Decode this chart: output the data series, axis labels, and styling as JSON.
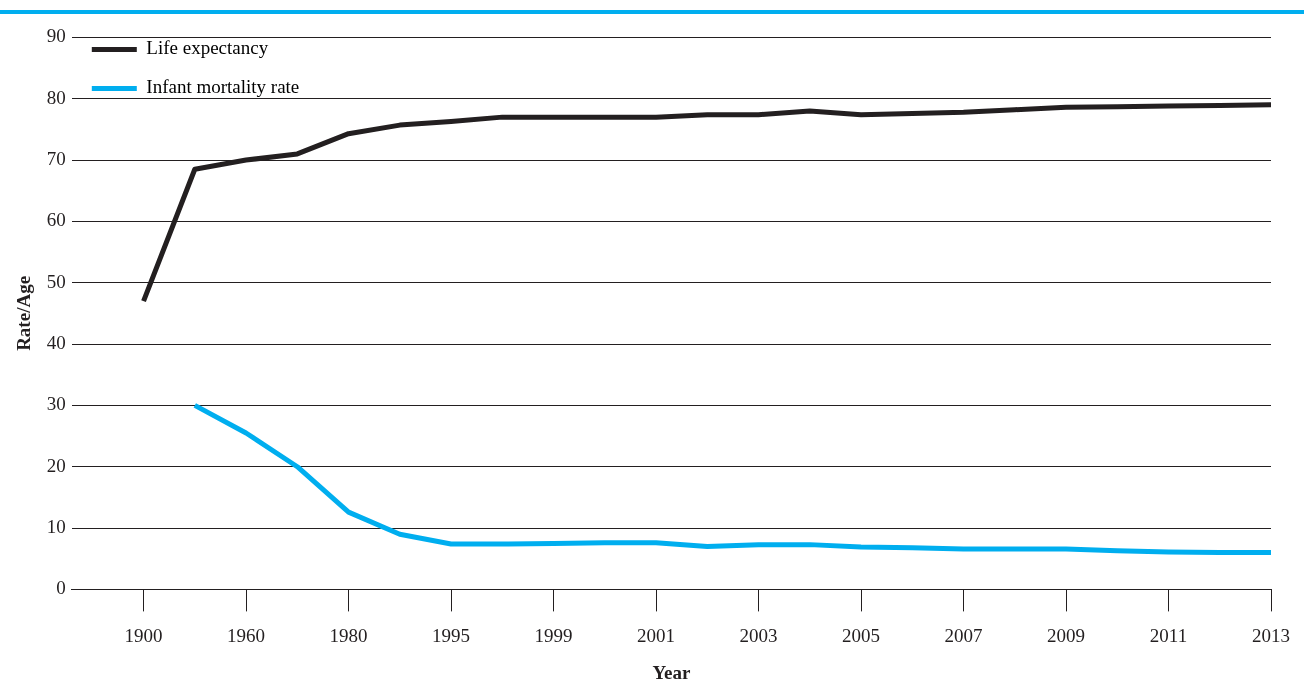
{
  "chart_data": {
    "type": "line",
    "xlabel": "Year",
    "ylabel": "Rate/Age",
    "categories": [
      "1900",
      null,
      "1960",
      null,
      "1980",
      null,
      "1995",
      null,
      "1999",
      null,
      "2001",
      null,
      "2003",
      null,
      "2005",
      null,
      "2007",
      null,
      "2009",
      null,
      "2011",
      null,
      "2013"
    ],
    "series": [
      {
        "name": "Life expectancy",
        "color": "#231f20",
        "values": [
          47,
          68.5,
          70,
          71,
          74.3,
          75.7,
          76.3,
          77,
          77,
          77,
          77,
          77.4,
          77.4,
          78,
          77.4,
          77.6,
          77.8,
          78.2,
          78.6,
          78.7,
          78.8,
          78.9,
          79
        ]
      },
      {
        "name": "Infant mortality rate",
        "color": "#00aeef",
        "values": [
          null,
          30,
          25.5,
          20,
          12.6,
          9,
          7.4,
          7.4,
          7.5,
          7.6,
          7.6,
          7,
          7.3,
          7.3,
          6.9,
          6.8,
          6.6,
          6.6,
          6.6,
          6.3,
          6.1,
          6,
          6
        ]
      }
    ],
    "ylim": [
      0,
      90
    ],
    "yticks": [
      0,
      10,
      20,
      30,
      40,
      50,
      60,
      70,
      80,
      90
    ],
    "grid": "y",
    "legend": "top left",
    "marker": "none",
    "line_style": "solid"
  }
}
